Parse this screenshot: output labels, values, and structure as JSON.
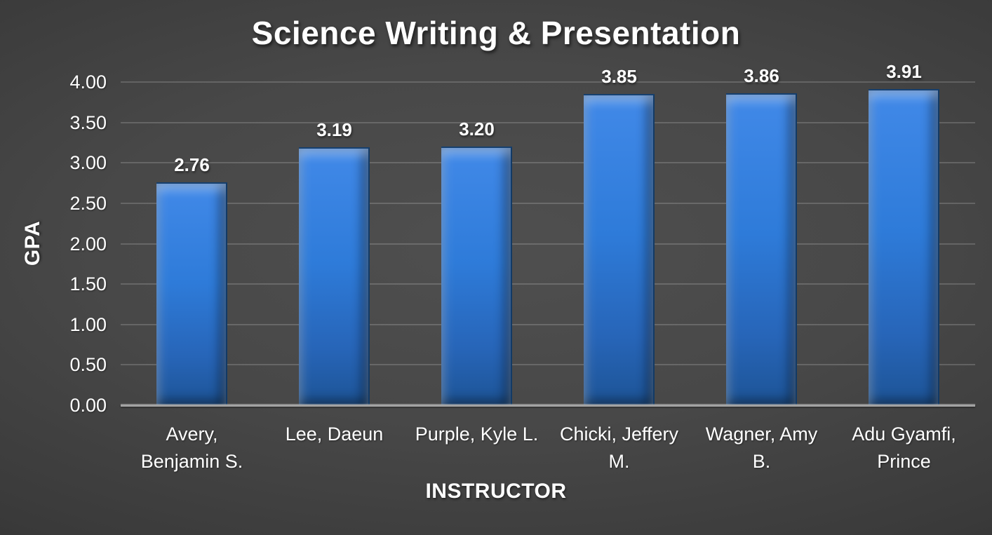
{
  "chart_data": {
    "type": "bar",
    "title": "Science Writing & Presentation",
    "xlabel": "INSTRUCTOR",
    "ylabel": "GPA",
    "categories": [
      "Avery, Benjamin S.",
      "Lee, Daeun",
      "Purple, Kyle L.",
      "Chicki, Jeffery M.",
      "Wagner, Amy B.",
      "Adu Gyamfi, Prince"
    ],
    "categories_wrapped": [
      [
        "Avery,",
        "Benjamin S."
      ],
      [
        "Lee, Daeun"
      ],
      [
        "Purple, Kyle L."
      ],
      [
        "Chicki, Jeffery",
        "M."
      ],
      [
        "Wagner, Amy",
        "B."
      ],
      [
        "Adu Gyamfi,",
        "Prince"
      ]
    ],
    "values": [
      2.76,
      3.19,
      3.2,
      3.85,
      3.86,
      3.91
    ],
    "value_labels": [
      "2.76",
      "3.19",
      "3.20",
      "3.85",
      "3.86",
      "3.91"
    ],
    "ylim": [
      0,
      4
    ],
    "ytick_values": [
      0,
      0.5,
      1,
      1.5,
      2,
      2.5,
      3,
      3.5,
      4
    ],
    "ytick_labels": [
      "0.00",
      "0.50",
      "1.00",
      "1.50",
      "2.00",
      "2.50",
      "3.00",
      "3.50",
      "4.00"
    ],
    "grid": true,
    "legend": false,
    "colors": {
      "bar_top": "#4189e8",
      "bar_body": "#2e7bd9",
      "bar_bottom": "#1d5496",
      "bar_edge": "#123a66",
      "background_center": "#4f4f4f",
      "background_edge": "#262626",
      "gridline": "rgba(255,255,255,0.17)",
      "axis_line": "#a3a3a3",
      "text": "#ffffff"
    }
  }
}
